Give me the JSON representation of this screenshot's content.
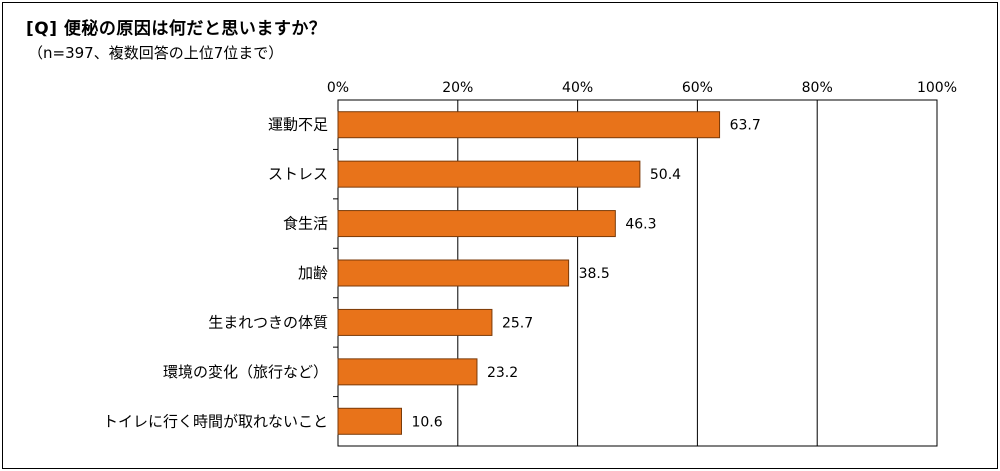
{
  "header": {
    "title": "[Q] 便秘の原因は何だと思いますか？",
    "subtitle": "（n=397、複数回答の上位7位まで）"
  },
  "chart_data": {
    "type": "bar",
    "orientation": "horizontal",
    "categories": [
      "運動不足",
      "ストレス",
      "食生活",
      "加齢",
      "生まれつきの体質",
      "環境の変化（旅行など）",
      "トイレに行く時間が取れないこと"
    ],
    "values": [
      63.7,
      50.4,
      46.3,
      38.5,
      25.7,
      23.2,
      10.6
    ],
    "value_labels": [
      "63.7",
      "50.4",
      "46.3",
      "38.5",
      "25.7",
      "23.2",
      "10.6"
    ],
    "xlim": [
      0,
      100
    ],
    "ticks": [
      0,
      20,
      40,
      60,
      80,
      100
    ],
    "tick_labels": [
      "0%",
      "20%",
      "40%",
      "60%",
      "80%",
      "100%"
    ],
    "grid": true,
    "bar_color": "#E8731A",
    "bar_edge_color": "#7a3a08"
  }
}
